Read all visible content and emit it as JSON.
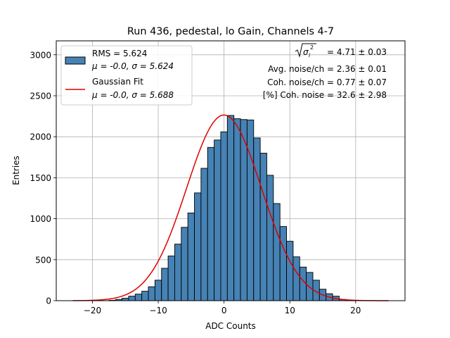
{
  "chart_data": {
    "type": "bar",
    "title": "Run 436, pedestal, lo Gain, Channels 4-7",
    "xlabel": "ADC Counts",
    "ylabel": "Entries",
    "xlim": [
      -25.5,
      27.5
    ],
    "ylim": [
      0,
      3170
    ],
    "x_ticks": [
      -20,
      -10,
      0,
      10,
      20
    ],
    "y_ticks": [
      0,
      500,
      1000,
      1500,
      2000,
      2500,
      3000
    ],
    "grid": true,
    "bin_width": 1,
    "bin_centers": [
      -17,
      -16,
      -15,
      -14,
      -13,
      -12,
      -11,
      -10,
      -9,
      -8,
      -7,
      -6,
      -5,
      -4,
      -3,
      -2,
      -1,
      0,
      1,
      2,
      3,
      4,
      5,
      6,
      7,
      8,
      9,
      10,
      11,
      12,
      13,
      14,
      15,
      16,
      17,
      18
    ],
    "histogram_values": [
      5,
      15,
      30,
      55,
      80,
      115,
      170,
      250,
      395,
      545,
      690,
      895,
      1070,
      1315,
      1615,
      1870,
      1960,
      2060,
      2260,
      2220,
      2210,
      2205,
      1985,
      1800,
      1530,
      1185,
      905,
      725,
      535,
      410,
      345,
      250,
      140,
      85,
      55,
      15
    ],
    "histogram_color": "#4682b4",
    "fit_color": "#e00000",
    "fit": {
      "mu": -0.0,
      "sigma": 5.688,
      "amplitude": 2265,
      "x_range": [
        -23,
        25
      ]
    },
    "legend": {
      "placement": "upper-left",
      "entries": [
        {
          "type": "patch",
          "line1": "RMS = 5.624",
          "line2": "μ = -0.0, σ = 5.624"
        },
        {
          "type": "line",
          "line1": "Gaussian Fit",
          "line2": "μ = -0.0, σ = 5.688"
        }
      ]
    },
    "annotations": [
      " = 4.71 ± 0.03",
      "Avg. noise/ch = 2.36 ± 0.01",
      "Coh. noise/ch = 0.77 ± 0.07",
      "[%] Coh. noise = 32.6 ± 2.98"
    ],
    "annotation_math": {
      "symbol": "σ",
      "subscript": "i",
      "superscript": "2"
    }
  }
}
